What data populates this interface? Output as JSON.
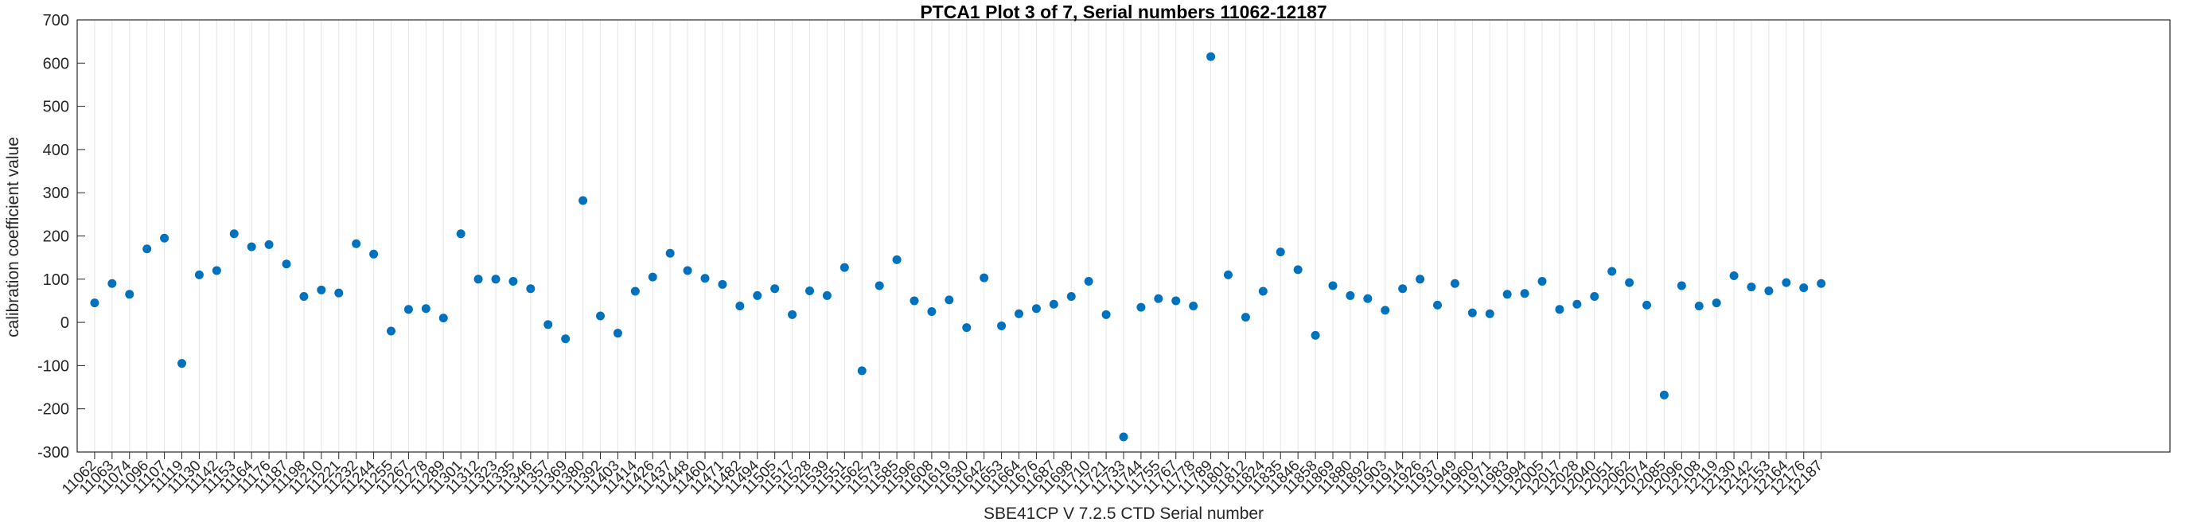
{
  "figure": {
    "title": "PTCA1 Plot 3 of 7, Serial numbers 11062-12187",
    "xlabel": "SBE41CP V 7.2.5 CTD Serial number",
    "ylabel": "calibration coefficient value"
  },
  "chart_data": {
    "type": "scatter",
    "title": "PTCA1 Plot 3 of 7, Serial numbers 11062-12187",
    "xlabel": "SBE41CP V 7.2.5 CTD Serial number",
    "ylabel": "calibration coefficient value",
    "ylim": [
      -300,
      700
    ],
    "ytick_step": 100,
    "x_slots": 120,
    "grid": "vertical-only",
    "legend": "none",
    "marker": "filled-circle",
    "marker_color": "#0072BD",
    "axis_color": "#262626",
    "grid_color": "#e6e6e6",
    "categories": [
      "11062",
      "11063",
      "11074",
      "11096",
      "11107",
      "11119",
      "11130",
      "11142",
      "11153",
      "11164",
      "11176",
      "11187",
      "11198",
      "11210",
      "11221",
      "11232",
      "11244",
      "11255",
      "11267",
      "11278",
      "11289",
      "11301",
      "11312",
      "11323",
      "11335",
      "11346",
      "11357",
      "11369",
      "11380",
      "11392",
      "11403",
      "11414",
      "11426",
      "11437",
      "11448",
      "11460",
      "11471",
      "11482",
      "11494",
      "11505",
      "11517",
      "11528",
      "11539",
      "11551",
      "11562",
      "11573",
      "11585",
      "11596",
      "11608",
      "11619",
      "11630",
      "11642",
      "11653",
      "11664",
      "11676",
      "11687",
      "11698",
      "11710",
      "11721",
      "11733",
      "11744",
      "11755",
      "11767",
      "11778",
      "11789",
      "11801",
      "11812",
      "11824",
      "11835",
      "11846",
      "11858",
      "11869",
      "11880",
      "11892",
      "11903",
      "11914",
      "11926",
      "11937",
      "11949",
      "11960",
      "11971",
      "11983",
      "11994",
      "12005",
      "12017",
      "12028",
      "12040",
      "12051",
      "12062",
      "12074",
      "12085",
      "12096",
      "12108",
      "12119",
      "12130",
      "12142",
      "12153",
      "12164",
      "12176",
      "12187"
    ],
    "values": [
      45,
      90,
      65,
      170,
      195,
      -95,
      110,
      120,
      205,
      175,
      180,
      135,
      60,
      75,
      68,
      182,
      158,
      -20,
      30,
      32,
      10,
      205,
      100,
      100,
      95,
      78,
      -5,
      -38,
      282,
      15,
      -25,
      72,
      105,
      160,
      120,
      102,
      88,
      38,
      62,
      78,
      18,
      73,
      62,
      127,
      -112,
      85,
      145,
      50,
      25,
      52,
      -12,
      103,
      -8,
      20,
      32,
      42,
      60,
      95,
      18,
      -265,
      35,
      55,
      50,
      38,
      615,
      110,
      12,
      72,
      163,
      122,
      -30,
      85,
      62,
      55,
      28,
      78,
      100,
      40,
      90,
      22,
      20,
      65,
      67,
      95,
      30,
      42,
      60,
      118,
      92,
      40,
      -168,
      85,
      38,
      45,
      108,
      82,
      73,
      92,
      80,
      90
    ]
  }
}
